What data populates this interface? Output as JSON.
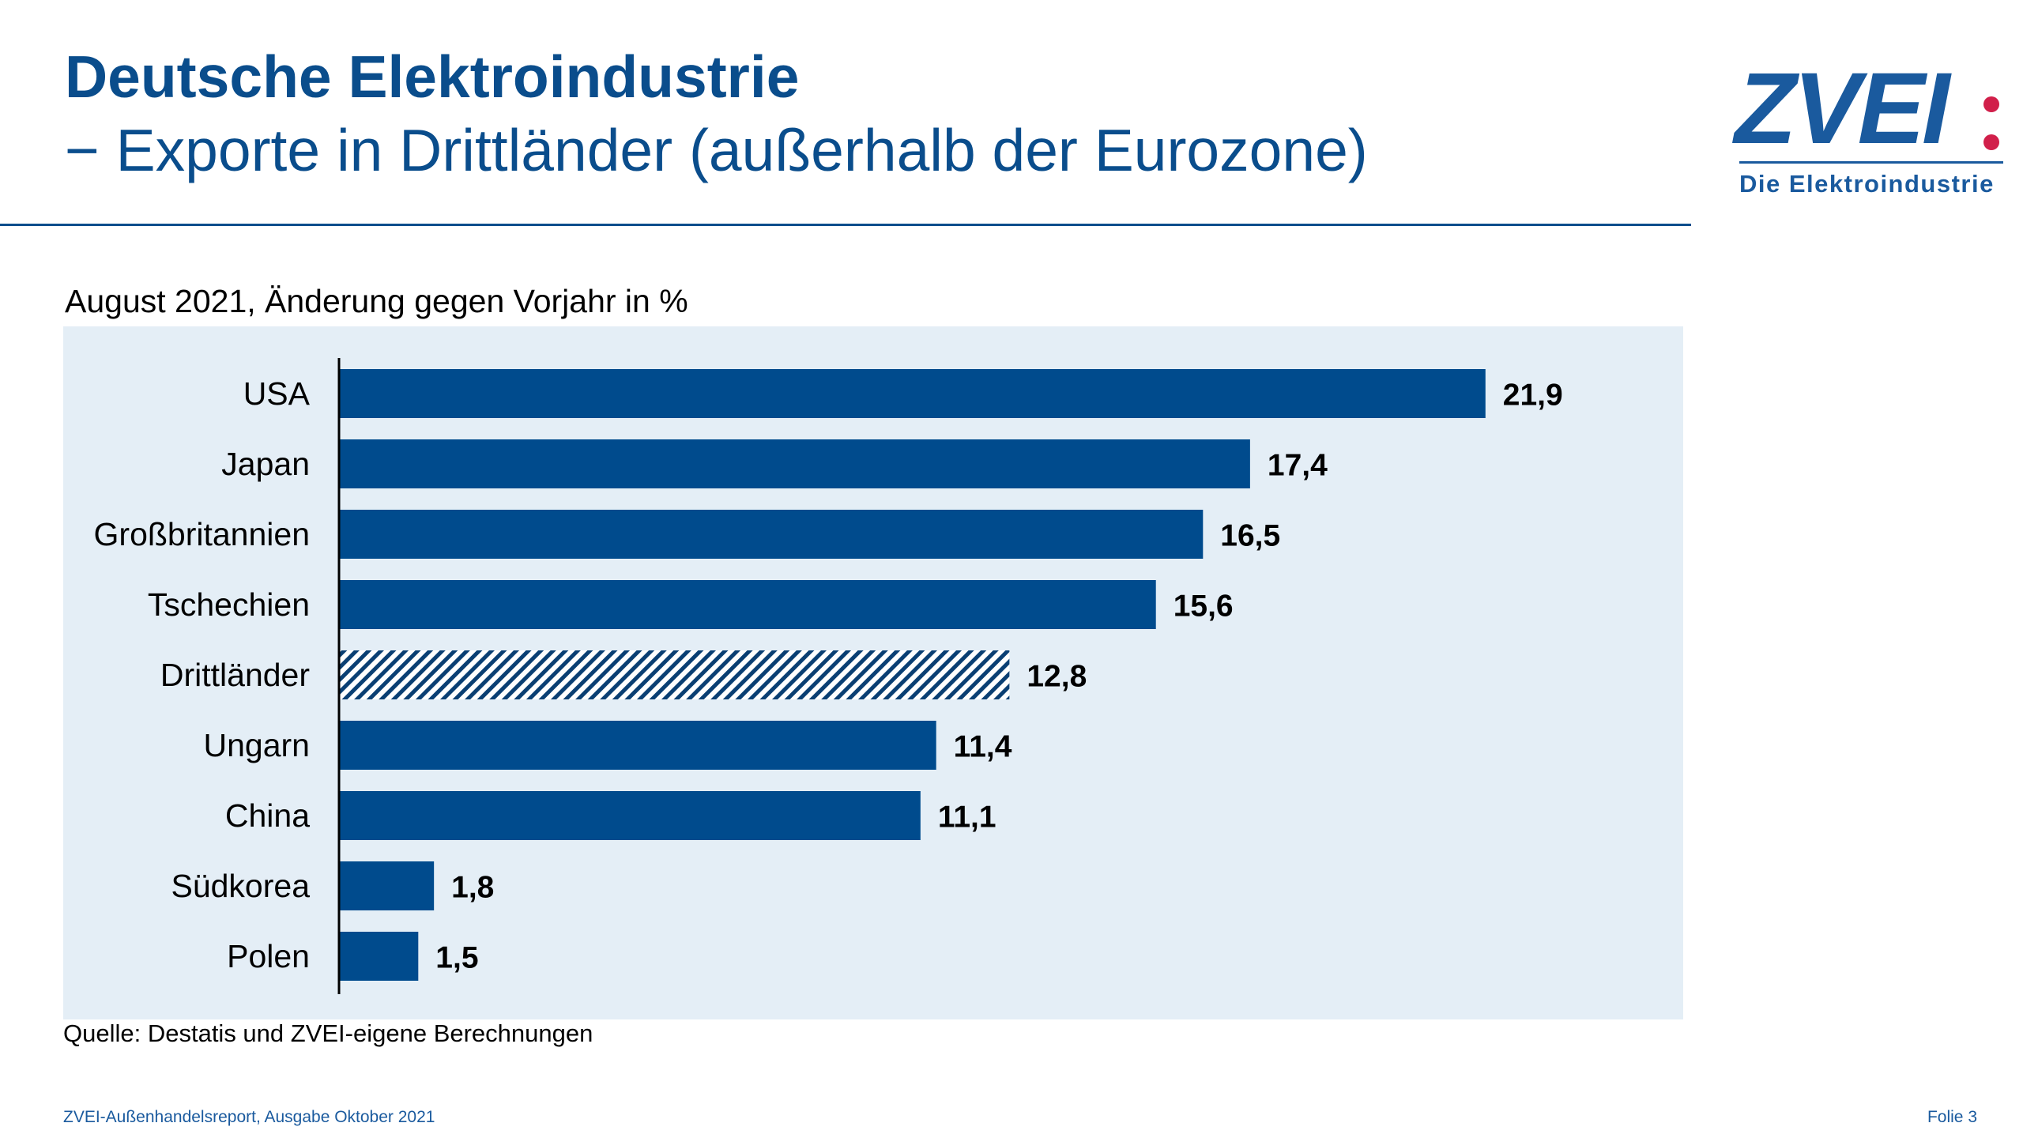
{
  "header": {
    "title": "Deutsche Elektroindustrie",
    "subtitle": "− Exporte in Drittländer (außerhalb der Eurozone)"
  },
  "logo": {
    "word": "ZVEI",
    "tagline": "Die Elektroindustrie"
  },
  "colors": {
    "brand_blue": "#0a4d8c",
    "bar_blue": "#004b8d",
    "panel_bg": "#e4eef6",
    "logo_red": "#d11f4a"
  },
  "chart_data": {
    "type": "bar",
    "orientation": "horizontal",
    "title": "August 2021, Änderung gegen Vorjahr in %",
    "categories": [
      "USA",
      "Japan",
      "Großbritannien",
      "Tschechien",
      "Drittländer",
      "Ungarn",
      "China",
      "Südkorea",
      "Polen"
    ],
    "values": [
      21.9,
      17.4,
      16.5,
      15.6,
      12.8,
      11.4,
      11.1,
      1.8,
      1.5
    ],
    "value_labels": [
      "21,9",
      "17,4",
      "16,5",
      "15,6",
      "12,8",
      "11,4",
      "11,1",
      "1,8",
      "1,5"
    ],
    "highlight_category": "Drittländer",
    "highlight_style": "hatched",
    "xlim": [
      0,
      25
    ],
    "xlabel": "",
    "ylabel": "",
    "grid": false,
    "legend": "none"
  },
  "source": "Quelle: Destatis und ZVEI-eigene Berechnungen",
  "footer": {
    "left": "ZVEI-Außenhandelsreport, Ausgabe Oktober 2021",
    "right": "Folie 3"
  }
}
